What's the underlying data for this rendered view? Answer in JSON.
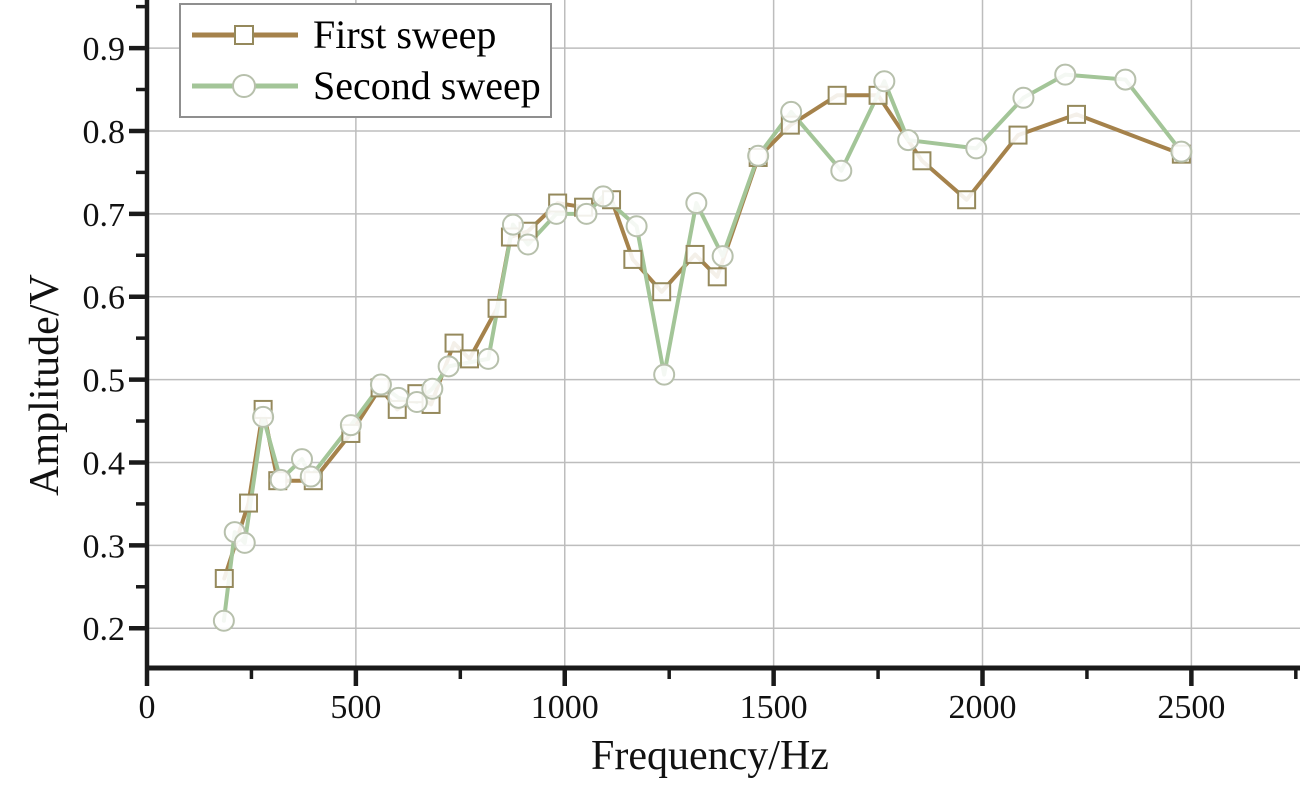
{
  "figure": {
    "background": "#ffffff"
  },
  "chart_data": {
    "type": "line",
    "title": "",
    "xlabel": "Frequency/Hz",
    "ylabel": "Amplitude/V",
    "xlim": [
      0,
      2760
    ],
    "ylim": [
      0.152,
      0.958
    ],
    "x_ticks": [
      0,
      500,
      1000,
      1500,
      2000,
      2500
    ],
    "x_minor_ticks": [
      250,
      750,
      1250,
      1750,
      2250,
      2750
    ],
    "y_ticks": [
      0.2,
      0.3,
      0.4,
      0.5,
      0.6,
      0.7,
      0.8,
      0.9
    ],
    "y_minor_ticks": [
      0.25,
      0.35,
      0.45,
      0.55,
      0.65,
      0.75,
      0.85,
      0.95
    ],
    "grid": true,
    "legend_position": "top-left",
    "axis_color": "#1a1a1a",
    "grid_color": "#bdbdbd",
    "series": [
      {
        "name": "First sweep",
        "color": "#a5824b",
        "marker": "square",
        "marker_edge": "#95895c",
        "marker_fill": "#ffffff",
        "x": [
          185,
          243,
          278,
          313,
          398,
          488,
          558,
          599,
          646,
          680,
          735,
          772,
          838,
          870,
          912,
          983,
          1045,
          1112,
          1163,
          1232,
          1312,
          1365,
          1463,
          1540,
          1652,
          1750,
          1855,
          1962,
          2085,
          2225,
          2476
        ],
        "y": [
          0.26,
          0.351,
          0.464,
          0.378,
          0.378,
          0.435,
          0.49,
          0.464,
          0.483,
          0.47,
          0.544,
          0.525,
          0.586,
          0.672,
          0.679,
          0.713,
          0.708,
          0.717,
          0.645,
          0.606,
          0.651,
          0.624,
          0.768,
          0.807,
          0.843,
          0.843,
          0.764,
          0.717,
          0.795,
          0.82,
          0.772
        ]
      },
      {
        "name": "Second sweep",
        "color": "#a3c598",
        "marker": "circle",
        "marker_edge": "#b7c0ac",
        "marker_fill": "#ffffff",
        "x": [
          184,
          210,
          234,
          278,
          320,
          371,
          392,
          488,
          560,
          602,
          646,
          683,
          722,
          817,
          876,
          912,
          980,
          1052,
          1092,
          1172,
          1238,
          1315,
          1378,
          1463,
          1542,
          1662,
          1765,
          1822,
          1985,
          2098,
          2198,
          2342,
          2476
        ],
        "y": [
          0.209,
          0.316,
          0.303,
          0.455,
          0.379,
          0.404,
          0.383,
          0.445,
          0.494,
          0.478,
          0.473,
          0.489,
          0.516,
          0.525,
          0.687,
          0.663,
          0.7,
          0.7,
          0.721,
          0.685,
          0.506,
          0.713,
          0.649,
          0.77,
          0.823,
          0.752,
          0.86,
          0.789,
          0.779,
          0.84,
          0.868,
          0.862,
          0.775
        ]
      }
    ]
  }
}
